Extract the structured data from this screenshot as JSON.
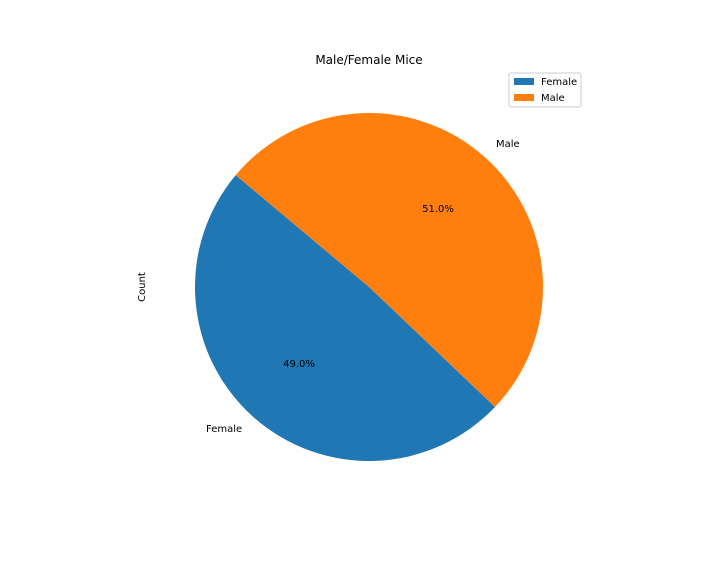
{
  "chart_data": {
    "type": "pie",
    "title": "Male/Female Mice",
    "ylabel": "Count",
    "categories": [
      "Female",
      "Male"
    ],
    "values": [
      49.0,
      51.0
    ],
    "value_labels": [
      "49.0%",
      "51.0%"
    ],
    "colors": [
      "#1f77b4",
      "#ff7f0e"
    ],
    "legend": {
      "position": "top-right",
      "entries": [
        "Female",
        "Male"
      ]
    }
  }
}
